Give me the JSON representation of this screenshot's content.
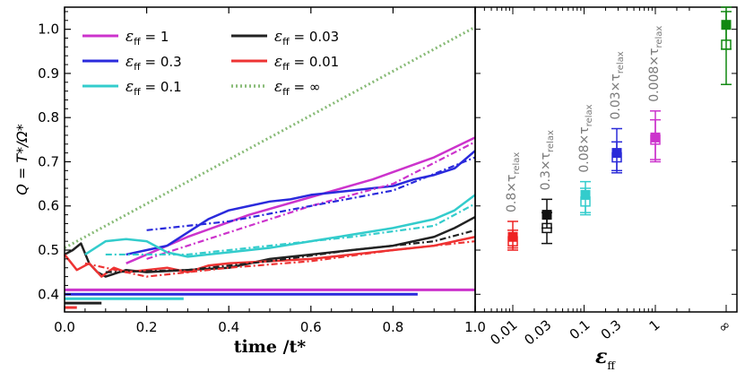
{
  "chart_data": [
    {
      "type": "line",
      "ylabel": "Q = T*/Ω*",
      "xlabel": "time /t*",
      "xlim": [
        0.0,
        1.0
      ],
      "ylim": [
        0.36,
        1.05
      ],
      "xticks": [
        "0.0",
        "0.2",
        "0.4",
        "0.6",
        "0.8",
        "1.0"
      ],
      "yticks": [
        "0.4",
        "0.5",
        "0.6",
        "0.7",
        "0.8",
        "0.9",
        "1.0"
      ],
      "legend_symbol": "ε",
      "legend_subscript": "ff",
      "series": [
        {
          "name": "1",
          "color": "#cc33cc",
          "style": "solid",
          "x": [
            0.15,
            0.3,
            0.45,
            0.6,
            0.75,
            0.9,
            1.0
          ],
          "y": [
            0.47,
            0.53,
            0.58,
            0.62,
            0.66,
            0.71,
            0.755
          ]
        },
        {
          "name": "0.03",
          "color": "#222222",
          "style": "solid",
          "x": [
            0.0,
            0.02,
            0.04,
            0.06,
            0.08,
            0.1,
            0.15,
            0.2,
            0.3,
            0.4,
            0.5,
            0.6,
            0.7,
            0.8,
            0.9,
            0.95,
            1.0
          ],
          "y": [
            0.49,
            0.5,
            0.515,
            0.47,
            0.45,
            0.44,
            0.455,
            0.45,
            0.455,
            0.46,
            0.48,
            0.49,
            0.5,
            0.51,
            0.53,
            0.55,
            0.575
          ]
        },
        {
          "name": "0.3",
          "color": "#2a2adc",
          "style": "solid",
          "x": [
            0.15,
            0.2,
            0.25,
            0.3,
            0.35,
            0.4,
            0.45,
            0.5,
            0.55,
            0.6,
            0.65,
            0.7,
            0.75,
            0.8,
            0.85,
            0.9,
            0.95,
            1.0
          ],
          "y": [
            0.49,
            0.5,
            0.51,
            0.54,
            0.57,
            0.59,
            0.6,
            0.61,
            0.615,
            0.625,
            0.63,
            0.635,
            0.64,
            0.645,
            0.66,
            0.67,
            0.685,
            0.725
          ]
        },
        {
          "name": "0.01",
          "color": "#ee3333",
          "style": "solid",
          "x": [
            0.0,
            0.03,
            0.06,
            0.09,
            0.12,
            0.15,
            0.2,
            0.25,
            0.3,
            0.35,
            0.4,
            0.5,
            0.6,
            0.7,
            0.8,
            0.9,
            1.0
          ],
          "y": [
            0.49,
            0.455,
            0.47,
            0.44,
            0.46,
            0.45,
            0.455,
            0.46,
            0.45,
            0.465,
            0.47,
            0.475,
            0.48,
            0.49,
            0.5,
            0.51,
            0.53
          ]
        },
        {
          "name": "0.1",
          "color": "#33cccc",
          "style": "solid",
          "x": [
            0.05,
            0.1,
            0.15,
            0.2,
            0.25,
            0.3,
            0.35,
            0.4,
            0.5,
            0.6,
            0.7,
            0.8,
            0.9,
            0.95,
            1.0
          ],
          "y": [
            0.49,
            0.52,
            0.525,
            0.52,
            0.495,
            0.485,
            0.49,
            0.495,
            0.505,
            0.52,
            0.535,
            0.55,
            0.57,
            0.59,
            0.625
          ]
        },
        {
          "name": "∞",
          "color": "#88bb77",
          "style": "dotted",
          "x": [
            0.0,
            1.0
          ],
          "y": [
            0.505,
            1.005
          ]
        }
      ],
      "dashed_series": [
        {
          "color": "#cc33cc",
          "x": [
            0.2,
            0.4,
            0.6,
            0.8,
            1.0
          ],
          "y": [
            0.48,
            0.54,
            0.6,
            0.65,
            0.745
          ]
        },
        {
          "color": "#2a2adc",
          "x": [
            0.2,
            0.4,
            0.6,
            0.8,
            1.0
          ],
          "y": [
            0.545,
            0.565,
            0.6,
            0.635,
            0.71
          ]
        },
        {
          "color": "#222222",
          "x": [
            0.1,
            0.3,
            0.5,
            0.7,
            0.9,
            1.0
          ],
          "y": [
            0.45,
            0.455,
            0.475,
            0.5,
            0.52,
            0.545
          ]
        },
        {
          "color": "#33cccc",
          "x": [
            0.1,
            0.3,
            0.5,
            0.7,
            0.9,
            1.0
          ],
          "y": [
            0.49,
            0.49,
            0.51,
            0.53,
            0.555,
            0.605
          ]
        },
        {
          "color": "#ee3333",
          "x": [
            0.05,
            0.2,
            0.4,
            0.6,
            0.8,
            1.0
          ],
          "y": [
            0.47,
            0.44,
            0.46,
            0.475,
            0.5,
            0.52
          ]
        }
      ],
      "bottom_bars": [
        {
          "color": "#cc33cc",
          "y": 0.41,
          "x0": 0.0,
          "x1": 1.0
        },
        {
          "color": "#2a2adc",
          "y": 0.4,
          "x0": 0.0,
          "x1": 0.86
        },
        {
          "color": "#33cccc",
          "y": 0.39,
          "x0": 0.0,
          "x1": 0.29
        },
        {
          "color": "#222222",
          "y": 0.38,
          "x0": 0.0,
          "x1": 0.09
        },
        {
          "color": "#ee3333",
          "y": 0.37,
          "x0": 0.0,
          "x1": 0.03
        }
      ]
    },
    {
      "type": "scatter",
      "xlabel": "ε_ff",
      "ylim": [
        0.36,
        1.05
      ],
      "categories": [
        "0.01",
        "0.03",
        "0.1",
        "0.3",
        "1",
        "∞"
      ],
      "filled": [
        {
          "eps": "0.01",
          "y": 0.53,
          "lo": 0.505,
          "hi": 0.565,
          "color": "#ee2222"
        },
        {
          "eps": "0.03",
          "y": 0.58,
          "lo": 0.55,
          "hi": 0.615,
          "color": "#111111"
        },
        {
          "eps": "0.1",
          "y": 0.625,
          "lo": 0.585,
          "hi": 0.655,
          "color": "#33cccc"
        },
        {
          "eps": "0.3",
          "y": 0.72,
          "lo": 0.68,
          "hi": 0.775,
          "color": "#2a2ad8"
        },
        {
          "eps": "1",
          "y": 0.755,
          "lo": 0.7,
          "hi": 0.815,
          "color": "#cc33cc"
        },
        {
          "eps": "∞",
          "y": 1.01,
          "lo": 0.955,
          "hi": 1.05,
          "color": "#118811"
        }
      ],
      "open": [
        {
          "eps": "0.01",
          "y": 0.52,
          "lo": 0.5,
          "hi": 0.545,
          "color": "#ee2222"
        },
        {
          "eps": "0.03",
          "y": 0.55,
          "lo": 0.515,
          "hi": 0.585,
          "color": "#111111"
        },
        {
          "eps": "0.1",
          "y": 0.61,
          "lo": 0.58,
          "hi": 0.64,
          "color": "#33cccc"
        },
        {
          "eps": "0.3",
          "y": 0.71,
          "lo": 0.675,
          "hi": 0.745,
          "color": "#2a2ad8"
        },
        {
          "eps": "1",
          "y": 0.75,
          "lo": 0.705,
          "hi": 0.795,
          "color": "#cc33cc"
        },
        {
          "eps": "∞",
          "y": 0.965,
          "lo": 0.875,
          "hi": 1.04,
          "color": "#118811"
        }
      ],
      "relax_labels": [
        {
          "eps": "0.01",
          "text": "0.8×τ",
          "sub": "relax"
        },
        {
          "eps": "0.03",
          "text": "0.3×τ",
          "sub": "relax"
        },
        {
          "eps": "0.1",
          "text": "0.08×τ",
          "sub": "relax"
        },
        {
          "eps": "0.3",
          "text": "0.03×τ",
          "sub": "relax"
        },
        {
          "eps": "1",
          "text": "0.008×τ",
          "sub": "relax"
        }
      ]
    }
  ]
}
